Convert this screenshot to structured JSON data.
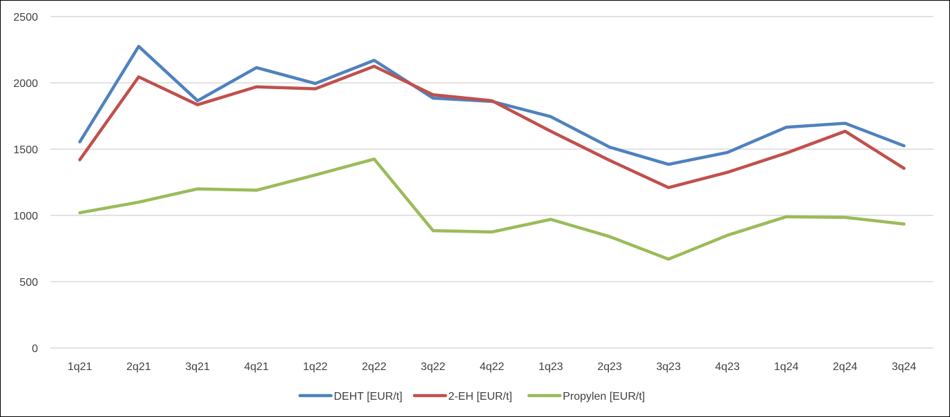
{
  "chart_data": {
    "type": "line",
    "title": "",
    "xlabel": "",
    "ylabel": "",
    "categories": [
      "1q21",
      "2q21",
      "3q21",
      "4q21",
      "1q22",
      "2q22",
      "3q22",
      "4q22",
      "1q23",
      "2q23",
      "3q23",
      "4q23",
      "1q24",
      "2q24",
      "3q24"
    ],
    "ylim": [
      0,
      2500
    ],
    "yticks": [
      0,
      500,
      1000,
      1500,
      2000,
      2500
    ],
    "grid": "horizontal",
    "legend_position": "bottom",
    "series": [
      {
        "name": "DEHT [EUR/t]",
        "color": "#4f81bd",
        "values": [
          1555,
          2275,
          1865,
          2115,
          1995,
          2170,
          1885,
          1860,
          1745,
          1515,
          1385,
          1475,
          1665,
          1695,
          1525
        ]
      },
      {
        "name": "2-EH [EUR/t]",
        "color": "#c0504d",
        "values": [
          1420,
          2045,
          1835,
          1970,
          1955,
          2125,
          1910,
          1865,
          1635,
          1415,
          1210,
          1325,
          1470,
          1635,
          1355
        ]
      },
      {
        "name": "Propylen [EUR/t]",
        "color": "#9bbb59",
        "values": [
          1020,
          1100,
          1200,
          1190,
          1305,
          1425,
          885,
          875,
          970,
          840,
          670,
          850,
          990,
          985,
          935
        ]
      }
    ]
  }
}
